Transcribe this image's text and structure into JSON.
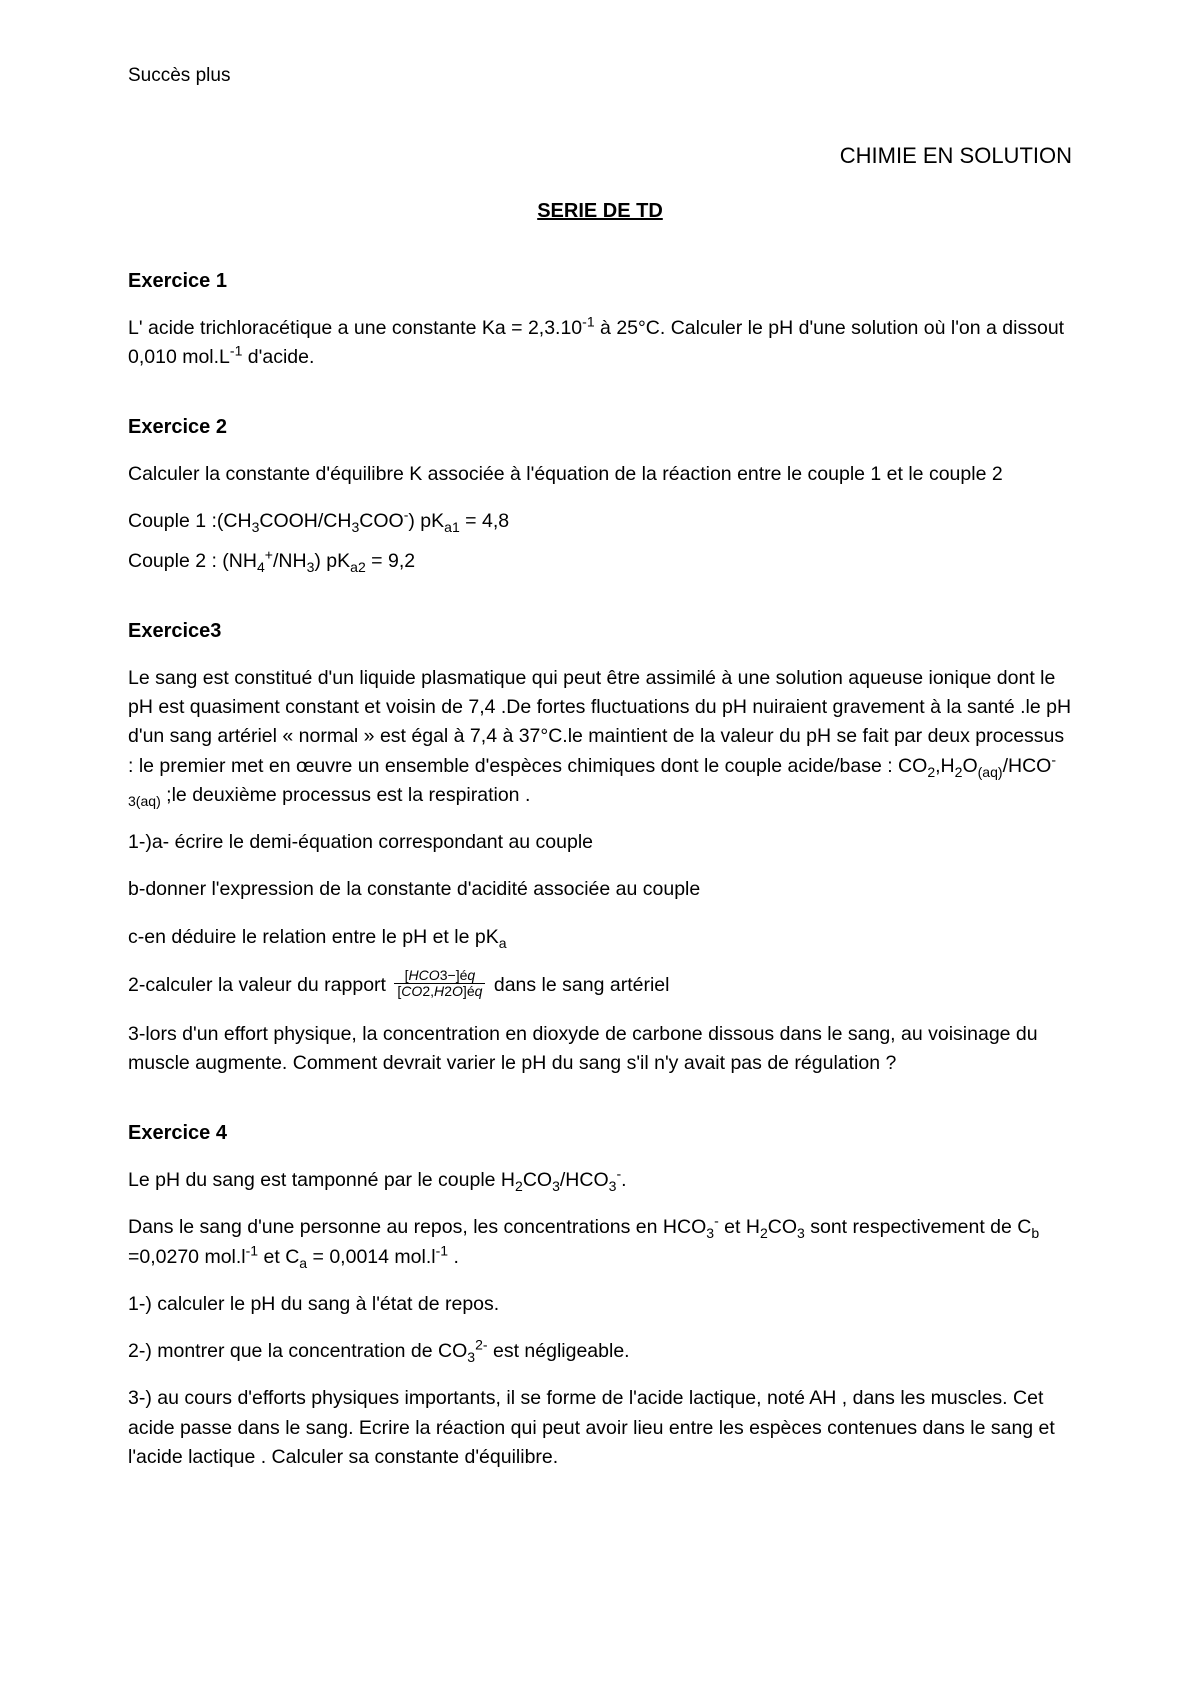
{
  "header": {
    "site": "Succès plus",
    "course": "CHIMIE EN SOLUTION",
    "series": "SERIE DE TD"
  },
  "ex1": {
    "title": "Exercice 1",
    "p1a": "L' acide trichloracétique a une constante Ka = 2,3.10",
    "p1b": " à 25°C. Calculer le pH d'une solution où l'on a dissout 0,010 mol.L",
    "p1c": " d'acide.",
    "exp1": "-1",
    "exp2": "-1"
  },
  "ex2": {
    "title": "Exercice 2",
    "p1": "Calculer  la constante d'équilibre K associée à l'équation de la réaction entre le couple 1 et le couple 2",
    "c1a": "Couple 1 :(CH",
    "c1b": "COOH/CH",
    "c1c": "COO",
    "c1d": ") pK",
    "c1e": " = 4,8",
    "sub3": "3",
    "supminus": "-",
    "sub_a1": "a1",
    "c2a": "Couple 2 : (NH",
    "c2b": "/NH",
    "c2c": ") pK",
    "c2d": " = 9,2",
    "sub4": "4",
    "supplus": "+",
    "sub_a2": "a2"
  },
  "ex3": {
    "title": "Exercice3",
    "p1a": "Le sang est constitué d'un liquide plasmatique qui peut être assimilé à une solution aqueuse ionique dont le pH est quasiment constant et voisin de 7,4 .De fortes fluctuations du pH nuiraient gravement à la santé .le pH d'un sang artériel « normal » est égal à 7,4 à 37°C.le maintient de la valeur du pH se fait par deux processus : le premier met en œuvre un ensemble d'espèces chimiques dont le couple acide/base : CO",
    "p1b": ",H",
    "p1c": "O",
    "p1d": "/HCO",
    "p1e": " ;le deuxième processus est la respiration .",
    "sub2": "2",
    "sub_aq": "(aq)",
    "supminus": "-",
    "sub_3aq": "3(aq)",
    "q1a": "1-)a- écrire le demi-équation correspondant au couple",
    "q1b": "b-donner l'expression de la constante d'acidité associée au couple",
    "q1c_a": "c-en déduire le relation entre le pH et le pK",
    "sub_a": "a",
    "q2a": "2-calculer la valeur du rapport ",
    "q2b": " dans le sang artériel",
    "frac_num_a": "[",
    "frac_num_b": "HCO",
    "frac_num_c": "3−]é",
    "frac_num_d": "q",
    "frac_den_a": "[",
    "frac_den_b": "CO",
    "frac_den_c": "2,",
    "frac_den_d": "H",
    "frac_den_e": "2",
    "frac_den_f": "O",
    "frac_den_g": "]é",
    "frac_den_h": "q",
    "q3": "3-lors d'un effort physique, la concentration en dioxyde de carbone dissous dans le sang, au voisinage du muscle augmente. Comment devrait varier le pH du sang s'il n'y avait pas de régulation ?"
  },
  "ex4": {
    "title": "Exercice 4",
    "p1a": "Le pH du sang est tamponné par le couple H",
    "p1b": "CO",
    "p1c": "/HCO",
    "p1d": ".",
    "sub2": "2",
    "sub3": "3",
    "supminus": "-",
    "p2a": "Dans le sang d'une personne au repos, les concentrations en HCO",
    "p2b": " et H",
    "p2c": "CO",
    "p2d": " sont respectivement de C",
    "p2e": " =0,0270 mol.l",
    "p2f": " et C",
    "p2g": " = 0,0014 mol.l",
    "p2h": " .",
    "sub_b": "b",
    "sub_a": "a",
    "exp_m1": "-1",
    "q1": "1-) calculer le pH du sang à l'état de repos.",
    "q2a": "2-) montrer que la concentration de CO",
    "q2b": " est négligeable.",
    "sup_2m": "2-",
    "q3": "3-) au cours d'efforts physiques importants, il se forme de l'acide lactique, noté AH , dans les muscles. Cet acide passe dans le sang. Ecrire la réaction qui peut avoir lieu entre les espèces contenues dans le sang et l'acide lactique . Calculer sa constante d'équilibre."
  }
}
